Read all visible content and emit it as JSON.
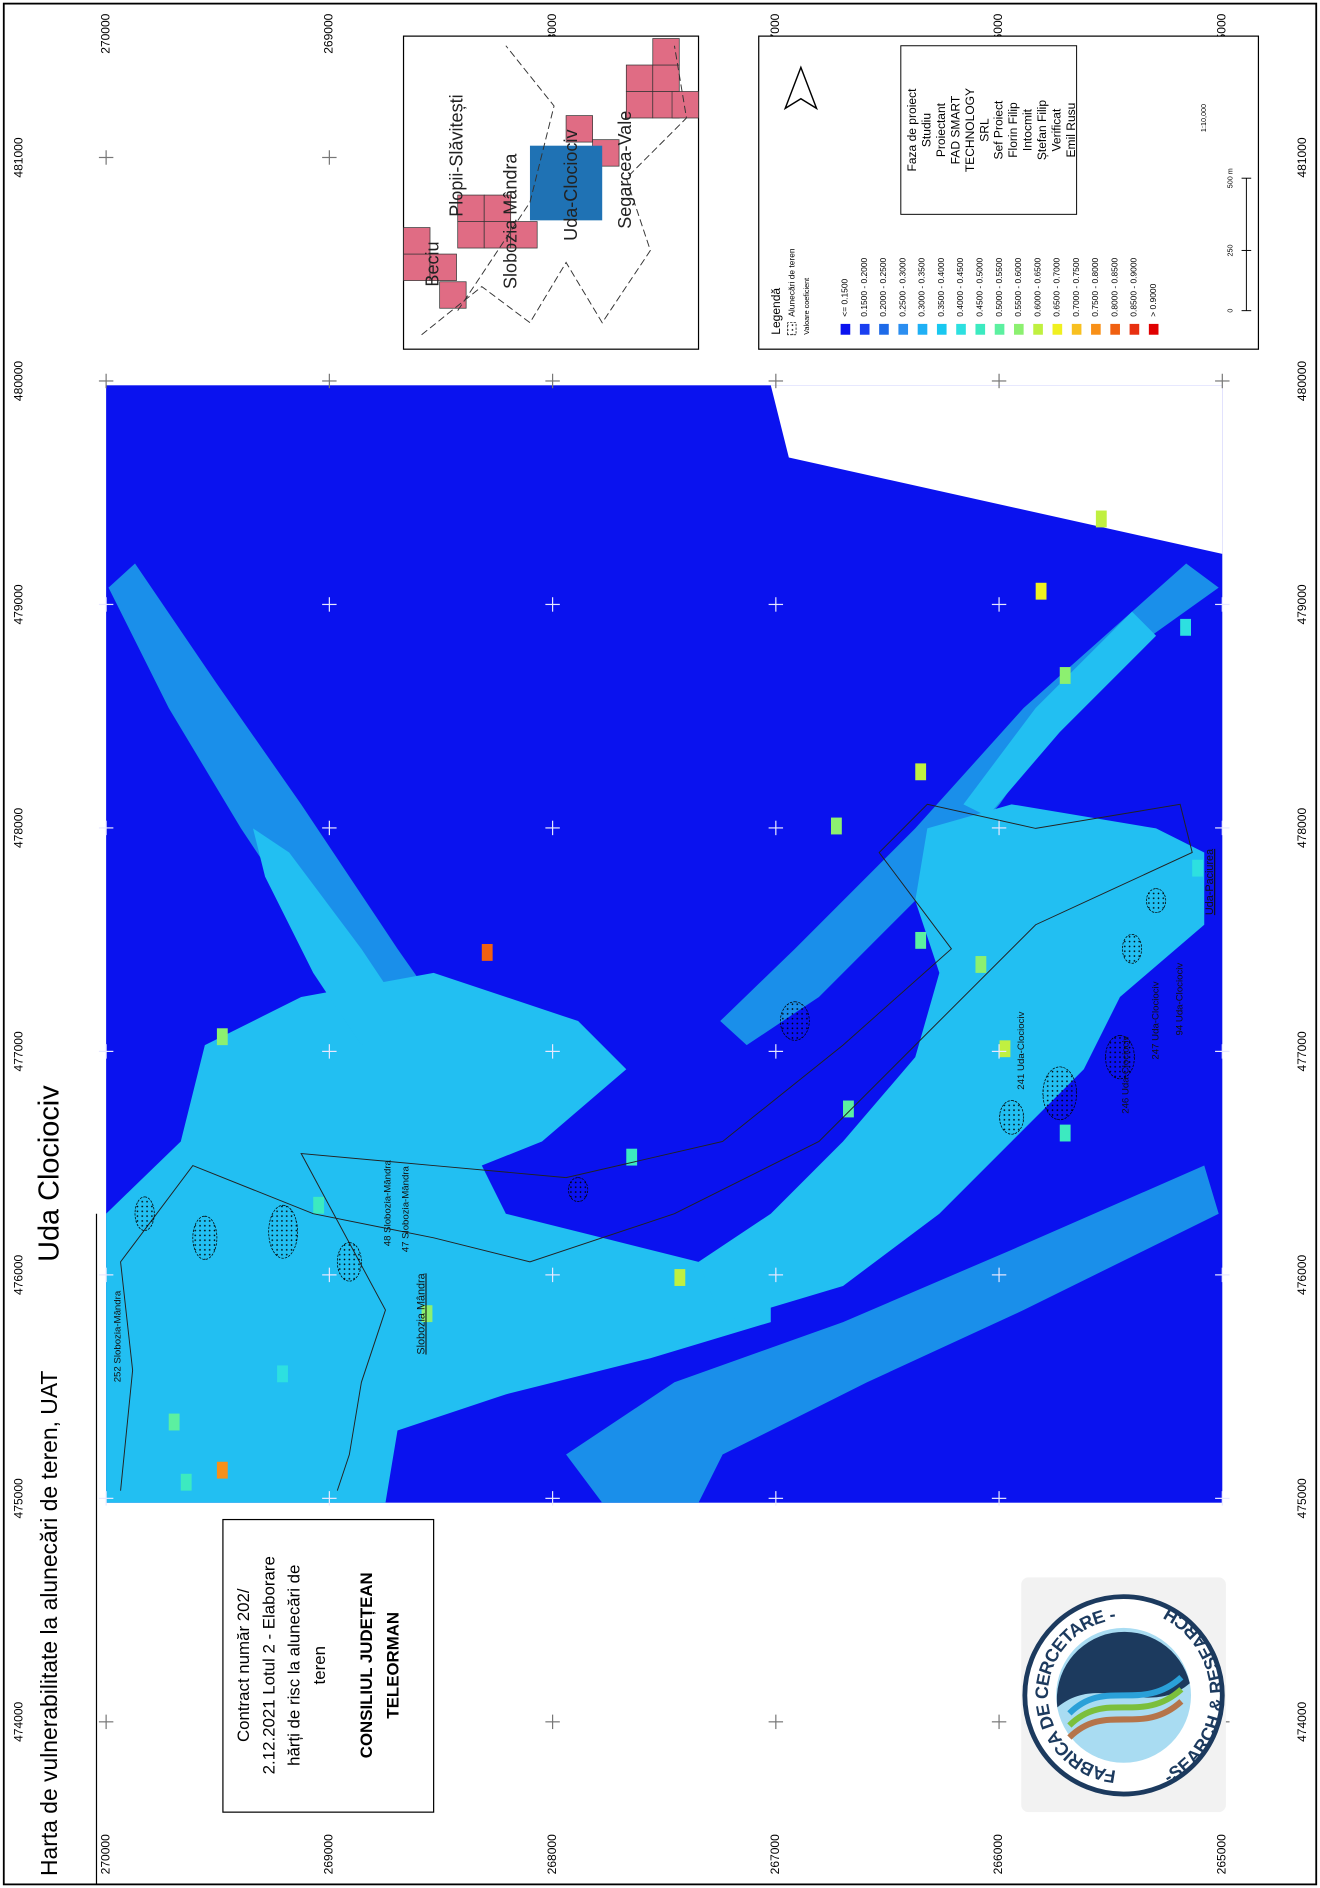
{
  "header": {
    "title": "Harta de vulnerabilitate la alunecări de teren, UAT",
    "uat": "Uda Clociociv"
  },
  "coordinates": {
    "eastings": [
      "474000",
      "475000",
      "476000",
      "477000",
      "478000",
      "479000",
      "480000",
      "481000"
    ],
    "northings": [
      "270000",
      "269000",
      "268000",
      "267000",
      "266000",
      "265000"
    ]
  },
  "project_box": {
    "lines": [
      "Contract număr 202/",
      "2.12.2021 Lotul 2 - Elaborare",
      "hărți de risc la alunecări de",
      "teren"
    ],
    "client": [
      "CONSILIUL JUDEȚEAN",
      "TELEORMAN"
    ]
  },
  "logo": {
    "top": "FABRICA DE CERCETARE -",
    "bottom": "-SEARCH & RESEARCH"
  },
  "inset": {
    "labels": [
      "Beciu",
      "Plopii-Slăvitești",
      "Slobozia Mândra",
      "Uda-Clociociv",
      "Segarcea-Vale"
    ]
  },
  "map_labels": [
    "252 Slobozia-Mândra",
    "48 Slobozia-Mândra",
    "47 Slobozia-Mândra",
    "Slobozia Mândra",
    "241 Uda-Clociociv",
    "246 Uda-Clociociv",
    "247 Uda-Clociociv",
    "94 Uda-Clociociv",
    "Uda-Paciurea"
  ],
  "legend": {
    "title": "Legendă",
    "layer": "Alunecări de teren",
    "subtitle": "Valoare coeficient",
    "classes": [
      {
        "label": "<= 0.1500",
        "color": "#0a12ef"
      },
      {
        "label": "0.1500 - 0.2000",
        "color": "#1a3ff0"
      },
      {
        "label": "0.2000 - 0.2500",
        "color": "#1e6ae8"
      },
      {
        "label": "0.2500 - 0.3000",
        "color": "#2b8ef0"
      },
      {
        "label": "0.3000 - 0.3500",
        "color": "#1fb0f5"
      },
      {
        "label": "0.3500 - 0.4000",
        "color": "#19c8f0"
      },
      {
        "label": "0.4000 - 0.4500",
        "color": "#2de0e0"
      },
      {
        "label": "0.4500 - 0.5000",
        "color": "#3ceac0"
      },
      {
        "label": "0.5000 - 0.5500",
        "color": "#5cf0a0"
      },
      {
        "label": "0.5500 - 0.6000",
        "color": "#8cf070"
      },
      {
        "label": "0.6000 - 0.6500",
        "color": "#c0f040"
      },
      {
        "label": "0.6500 - 0.7000",
        "color": "#f0f020"
      },
      {
        "label": "0.7000 - 0.7500",
        "color": "#f8c020"
      },
      {
        "label": "0.7500 - 0.8000",
        "color": "#f89018"
      },
      {
        "label": "0.8000 - 0.8500",
        "color": "#f06010"
      },
      {
        "label": "0.8500 - 0.9000",
        "color": "#e83010"
      },
      {
        "label": "> 0.9000",
        "color": "#e00000"
      }
    ]
  },
  "credits": [
    "Faza de proiect",
    "Studiu",
    "Proiectant",
    "FAD SMART",
    "TECHNOLOGY",
    "SRL",
    "Sef Proiect",
    "Florin Filip",
    "Intocmit",
    "Ștefan Filip",
    "Verificat",
    "Emil Rusu"
  ],
  "scale": {
    "ticks": [
      "0",
      "250",
      "500 m"
    ],
    "ratio": "1:10,000"
  }
}
